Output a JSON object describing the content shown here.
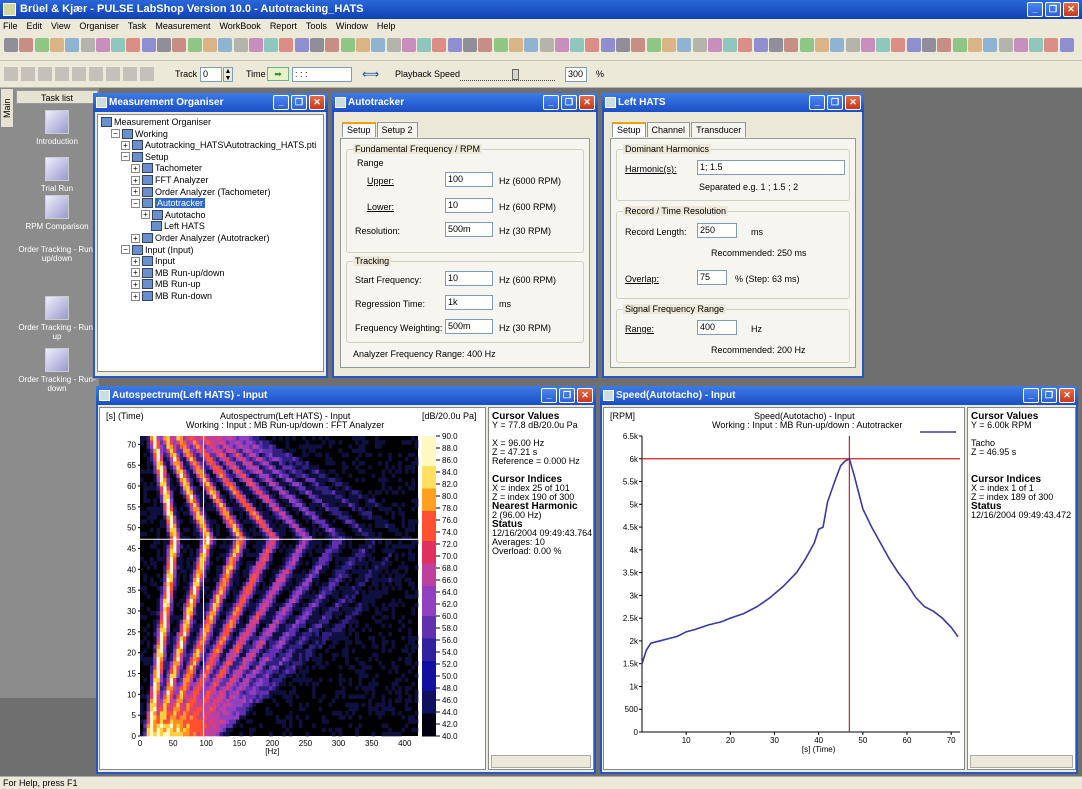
{
  "app": {
    "title": "Brüel & Kjær - PULSE LabShop Version 10.0 - Autotracking_HATS"
  },
  "menu": [
    "File",
    "Edit",
    "View",
    "Organiser",
    "Task",
    "Measurement",
    "WorkBook",
    "Report",
    "Tools",
    "Window",
    "Help"
  ],
  "toolbar2": {
    "track_label": "Track",
    "track_value": "0",
    "time_label": "Time",
    "time_value": ":   :   :",
    "playback_label": "Playback Speed",
    "playback_value": "300",
    "playback_unit": "%"
  },
  "sidebar": {
    "tab": "Main",
    "header": "Task list",
    "items": [
      "Introduction",
      "Trial Run",
      "RPM Comparison",
      "Order Tracking - Run-up/down",
      "Order Tracking - Run-up",
      "Order Tracking - Run-down"
    ]
  },
  "organiser": {
    "title": "Measurement Organiser",
    "tree": [
      "Measurement Organiser",
      "Working",
      "Autotracking_HATS\\Autotracking_HATS.pti",
      "Setup",
      "Tachometer",
      "FFT Analyzer",
      "Order Analyzer (Tachometer)",
      "Autotracker",
      "Autotacho",
      "Left HATS",
      "Order Analyzer (Autotracker)",
      "Input (Input)",
      "Input",
      "MB Run-up/down",
      "MB Run-up",
      "MB Run-down"
    ]
  },
  "autotracker": {
    "title": "Autotracker",
    "tabs": [
      "Setup",
      "Setup 2"
    ],
    "fund_group": "Fundamental Frequency / RPM",
    "range_label": "Range",
    "upper_label": "Upper:",
    "upper_value": "100",
    "upper_unit": "Hz (6000 RPM)",
    "lower_label": "Lower:",
    "lower_value": "10",
    "lower_unit": "Hz (600 RPM)",
    "res_label": "Resolution:",
    "res_value": "500m",
    "res_unit": "Hz (30 RPM)",
    "track_group": "Tracking",
    "start_label": "Start Frequency:",
    "start_value": "10",
    "start_unit": "Hz (600 RPM)",
    "regr_label": "Regression Time:",
    "regr_value": "1k",
    "regr_unit": "ms",
    "fw_label": "Frequency Weighting:",
    "fw_value": "500m",
    "fw_unit": "Hz (30 RPM)",
    "afr": "Analyzer Frequency Range:   400 Hz"
  },
  "lefthats": {
    "title": "Left HATS",
    "tabs": [
      "Setup",
      "Channel",
      "Transducer"
    ],
    "dom_group": "Dominant Harmonics",
    "harm_label": "Harmonic(s):",
    "harm_value": "1; 1.5",
    "harm_hint": "Separated e.g. 1 ; 1.5 ; 2",
    "rec_group": "Record / Time Resolution",
    "reclen_label": "Record Length:",
    "reclen_value": "250",
    "reclen_unit": "ms",
    "reclen_rec": "Recommended:   250 ms",
    "overlap_label": "Overlap:",
    "overlap_value": "75",
    "overlap_unit": "%  (Step: 63 ms)",
    "sig_group": "Signal Frequency Range",
    "range_label": "Range:",
    "range_value": "400",
    "range_unit": "Hz",
    "range_rec": "Recommended:   200 Hz"
  },
  "autospec": {
    "title": "Autospectrum(Left HATS) - Input",
    "ylabel": "[s] (Time)",
    "title1": "Autospectrum(Left HATS) - Input",
    "title2": "Working : Input : MB Run-up/down : FFT Analyzer",
    "unit": "[dB/20.0u Pa]",
    "xlabel": "[Hz]",
    "info": {
      "cv_h": "Cursor Values",
      "cv1": "Y = 77.8 dB/20.0u Pa",
      "cv2": "X = 96.00 Hz",
      "cv3": "Z = 47.21 s",
      "cv4": "Reference = 0.000 Hz",
      "ci_h": "Cursor Indices",
      "ci1": "X = index 25 of 101",
      "ci2": "Z = index 190 of 300",
      "nh_h": "Nearest Harmonic",
      "nh1": "2  (96.00 Hz)",
      "st_h": "Status",
      "st1": "12/16/2004  09:49:43.764",
      "st2": "Averages: 10",
      "st3": "Overload:  0.00 %"
    }
  },
  "speed": {
    "title": "Speed(Autotacho) - Input",
    "ylabel": "[RPM]",
    "title1": "Speed(Autotacho) - Input",
    "title2": "Working : Input : MB Run-up/down : Autotracker",
    "xlabel": "[s] (Time)",
    "info": {
      "cv_h": "Cursor Values",
      "cv1": "Y = 6.00k RPM",
      "cv2": "Tacho",
      "cv3": "Z = 46.95 s",
      "ci_h": "Cursor Indices",
      "ci1": "X = index 1 of 1",
      "ci2": "Z = index 189 of 300",
      "st_h": "Status",
      "st1": "12/16/2004  09:49:43.472"
    }
  },
  "chart_data": [
    {
      "type": "heatmap",
      "title": "Autospectrum(Left HATS) - Input",
      "xlabel": "[Hz]",
      "ylabel": "[s] (Time)",
      "xlim": [
        0,
        420
      ],
      "ylim": [
        0,
        72
      ],
      "x_ticks": [
        "0",
        "50",
        "100",
        "150",
        "200",
        "250",
        "300",
        "350",
        "400"
      ],
      "y_ticks": [
        "0",
        "5",
        "10",
        "15",
        "20",
        "25",
        "30",
        "35",
        "40",
        "45",
        "50",
        "55",
        "60",
        "65",
        "70"
      ],
      "colorbar": {
        "unit": "[dB/20.0u Pa]",
        "ticks": [
          "90.0",
          "88.0",
          "86.0",
          "84.0",
          "82.0",
          "80.0",
          "78.0",
          "76.0",
          "74.0",
          "72.0",
          "70.0",
          "68.0",
          "66.0",
          "64.0",
          "62.0",
          "60.0",
          "58.0",
          "56.0",
          "54.0",
          "52.0",
          "50.0",
          "48.0",
          "46.0",
          "44.0",
          "42.0",
          "40.0"
        ]
      },
      "cursor": {
        "x": 96,
        "y": 47.21
      }
    },
    {
      "type": "line",
      "title": "Speed(Autotacho) - Input",
      "xlabel": "[s] (Time)",
      "ylabel": "[RPM]",
      "xlim": [
        0,
        72
      ],
      "ylim": [
        0,
        6500
      ],
      "x_ticks": [
        "10",
        "20",
        "30",
        "40",
        "50",
        "60",
        "70"
      ],
      "y_ticks": [
        "0",
        "500",
        "1k",
        "1.5k",
        "2k",
        "2.5k",
        "3k",
        "3.5k",
        "4k",
        "4.5k",
        "5k",
        "5.5k",
        "6k",
        "6.5k"
      ],
      "series": [
        {
          "color": "#3a3aa0",
          "x": [
            0,
            1,
            2,
            4,
            6,
            8,
            10,
            12,
            15,
            18,
            20,
            23,
            26,
            29,
            32,
            35,
            37,
            39,
            40,
            41,
            42,
            44,
            45,
            46,
            46.95,
            48,
            50,
            52,
            54,
            56,
            58,
            60,
            62,
            64,
            66,
            68,
            70,
            71.5
          ],
          "y": [
            1500,
            1800,
            1950,
            2000,
            2050,
            2100,
            2200,
            2250,
            2350,
            2420,
            2500,
            2600,
            2750,
            2950,
            3200,
            3500,
            3800,
            4150,
            4450,
            4500,
            5050,
            5600,
            5850,
            5950,
            6000,
            5650,
            4900,
            4500,
            4150,
            3800,
            3500,
            3250,
            2950,
            2750,
            2650,
            2500,
            2300,
            2100
          ]
        }
      ],
      "cursor": {
        "x": 46.95,
        "y": 6000
      }
    }
  ],
  "status": {
    "text": "For Help, press F1"
  }
}
